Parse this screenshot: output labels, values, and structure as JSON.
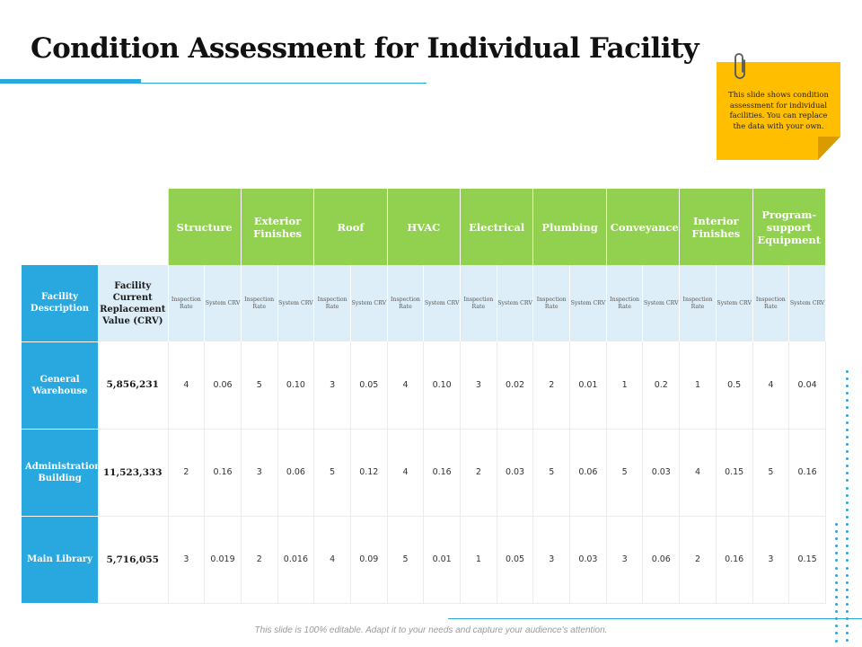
{
  "title": "Condition Assessment for Individual Facility",
  "note": {
    "text": "This slide shows condition assessment for individual facilities. You can replace the data with your own."
  },
  "table": {
    "facility_header": "Facility Description",
    "crv_header": "Facility Current Replacement Value (CRV)",
    "sub_headers": {
      "rate": "Inspection Rate",
      "crv": "System CRV"
    },
    "categories": [
      "Structure",
      "Exterior Finishes",
      "Roof",
      "HVAC",
      "Electrical",
      "Plumbing",
      "Conveyance",
      "Interior Finishes",
      "Program-support Equipment"
    ],
    "rows": [
      {
        "name": "General Warehouse",
        "crv": "5,856,231",
        "values": [
          [
            "4",
            "0.06"
          ],
          [
            "5",
            "0.10"
          ],
          [
            "3",
            "0.05"
          ],
          [
            "4",
            "0.10"
          ],
          [
            "3",
            "0.02"
          ],
          [
            "2",
            "0.01"
          ],
          [
            "1",
            "0.2"
          ],
          [
            "1",
            "0.5"
          ],
          [
            "4",
            "0.04"
          ]
        ]
      },
      {
        "name": "Administration Building",
        "crv": "11,523,333",
        "values": [
          [
            "2",
            "0.16"
          ],
          [
            "3",
            "0.06"
          ],
          [
            "5",
            "0.12"
          ],
          [
            "4",
            "0.16"
          ],
          [
            "2",
            "0.03"
          ],
          [
            "5",
            "0.06"
          ],
          [
            "5",
            "0.03"
          ],
          [
            "4",
            "0.15"
          ],
          [
            "5",
            "0.16"
          ]
        ]
      },
      {
        "name": "Main Library",
        "crv": "5,716,055",
        "values": [
          [
            "3",
            "0.019"
          ],
          [
            "2",
            "0.016"
          ],
          [
            "4",
            "0.09"
          ],
          [
            "5",
            "0.01"
          ],
          [
            "1",
            "0.05"
          ],
          [
            "3",
            "0.03"
          ],
          [
            "3",
            "0.06"
          ],
          [
            "2",
            "0.16"
          ],
          [
            "3",
            "0.15"
          ]
        ]
      }
    ]
  },
  "footer": "This slide is 100% editable. Adapt it to your needs and capture your audience's attention.",
  "colors": {
    "accent_blue": "#29a8e0",
    "header_green": "#92d050",
    "note_yellow": "#ffbf00",
    "sub_header_bg": "#ddeef8"
  }
}
